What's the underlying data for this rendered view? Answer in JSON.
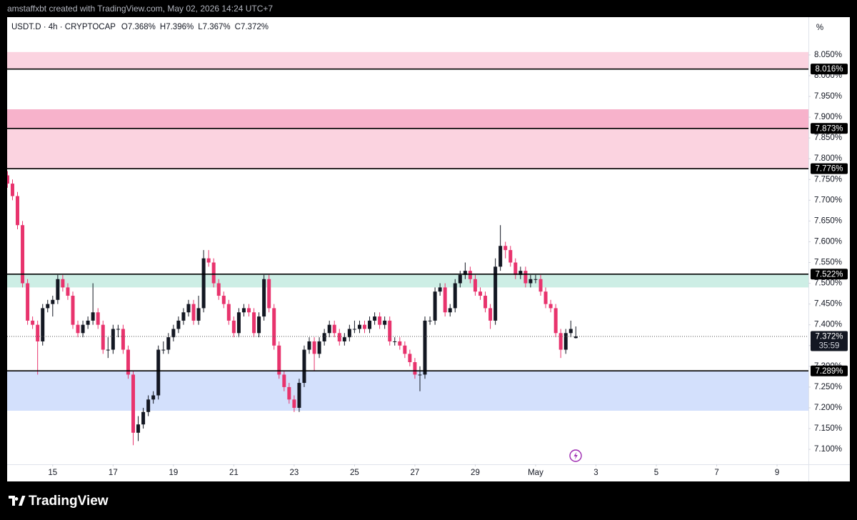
{
  "header": "amstaffxbt created with TradingView.com, May 02, 2026 14:24 UTC+7",
  "footer": {
    "brand": "TradingView"
  },
  "chart_data": {
    "type": "candlestick",
    "legend": {
      "symbol": "USDT.D · 4h · CRYPTOCAP",
      "items": [
        {
          "key": "O",
          "value": "7.368%"
        },
        {
          "key": "H",
          "value": "7.396%"
        },
        {
          "key": "L",
          "value": "7.367%"
        },
        {
          "key": "C",
          "value": "7.372%"
        }
      ]
    },
    "y_unit": "%",
    "up_color": "#131722",
    "down_color": "#e8336d",
    "x": [
      13.5,
      13.667,
      13.833,
      14,
      14.167,
      14.333,
      14.5,
      14.667,
      14.833,
      15,
      15.167,
      15.333,
      15.5,
      15.667,
      15.833,
      16,
      16.167,
      16.333,
      16.5,
      16.667,
      16.833,
      17,
      17.167,
      17.333,
      17.5,
      17.667,
      17.833,
      18,
      18.167,
      18.333,
      18.5,
      18.667,
      18.833,
      19,
      19.167,
      19.333,
      19.5,
      19.667,
      19.833,
      20,
      20.167,
      20.333,
      20.5,
      20.667,
      20.833,
      21,
      21.167,
      21.333,
      21.5,
      21.667,
      21.833,
      22,
      22.167,
      22.333,
      22.5,
      22.667,
      22.833,
      23,
      23.167,
      23.333,
      23.5,
      23.667,
      23.833,
      24,
      24.167,
      24.333,
      24.5,
      24.667,
      24.833,
      25,
      25.167,
      25.333,
      25.5,
      25.667,
      25.833,
      26,
      26.167,
      26.333,
      26.5,
      26.667,
      26.833,
      27,
      27.167,
      27.333,
      27.5,
      27.667,
      27.833,
      28,
      28.167,
      28.333,
      28.5,
      28.667,
      28.833,
      29,
      29.167,
      29.333,
      29.5,
      29.667,
      29.833,
      30,
      30.167,
      30.333,
      30.5,
      30.667,
      30.833,
      31,
      31.167,
      31.333,
      31.5,
      31.667,
      31.833,
      32,
      32.167,
      32.333
    ],
    "open": [
      7.76,
      7.74,
      7.71,
      7.64,
      7.5,
      7.41,
      7.4,
      7.36,
      7.44,
      7.45,
      7.46,
      7.51,
      7.49,
      7.47,
      7.4,
      7.38,
      7.4,
      7.41,
      7.43,
      7.4,
      7.34,
      7.34,
      7.39,
      7.39,
      7.34,
      7.28,
      7.14,
      7.16,
      7.19,
      7.22,
      7.23,
      7.34,
      7.34,
      7.37,
      7.39,
      7.41,
      7.43,
      7.45,
      7.41,
      7.44,
      7.56,
      7.55,
      7.5,
      7.47,
      7.45,
      7.41,
      7.38,
      7.43,
      7.44,
      7.43,
      7.38,
      7.42,
      7.51,
      7.44,
      7.35,
      7.28,
      7.25,
      7.22,
      7.2,
      7.26,
      7.34,
      7.36,
      7.33,
      7.36,
      7.38,
      7.4,
      7.38,
      7.36,
      7.37,
      7.39,
      7.39,
      7.4,
      7.39,
      7.41,
      7.42,
      7.4,
      7.41,
      7.36,
      7.36,
      7.35,
      7.33,
      7.31,
      7.28,
      7.28,
      7.41,
      7.41,
      7.48,
      7.49,
      7.43,
      7.44,
      7.5,
      7.52,
      7.53,
      7.51,
      7.48,
      7.47,
      7.44,
      7.41,
      7.54,
      7.59,
      7.58,
      7.55,
      7.52,
      7.53,
      7.5,
      7.51,
      7.51,
      7.48,
      7.45,
      7.44,
      7.38,
      7.34,
      7.38,
      7.368
    ],
    "high": [
      7.77,
      7.75,
      7.72,
      7.65,
      7.51,
      7.42,
      7.41,
      7.45,
      7.46,
      7.47,
      7.52,
      7.52,
      7.5,
      7.48,
      7.41,
      7.41,
      7.42,
      7.5,
      7.44,
      7.41,
      7.37,
      7.4,
      7.4,
      7.4,
      7.35,
      7.29,
      7.18,
      7.2,
      7.23,
      7.24,
      7.35,
      7.36,
      7.38,
      7.4,
      7.42,
      7.44,
      7.46,
      7.46,
      7.47,
      7.58,
      7.58,
      7.56,
      7.51,
      7.48,
      7.46,
      7.42,
      7.44,
      7.45,
      7.45,
      7.44,
      7.43,
      7.52,
      7.52,
      7.45,
      7.36,
      7.29,
      7.26,
      7.23,
      7.27,
      7.35,
      7.37,
      7.37,
      7.37,
      7.39,
      7.41,
      7.41,
      7.39,
      7.38,
      7.4,
      7.41,
      7.41,
      7.41,
      7.42,
      7.43,
      7.43,
      7.42,
      7.42,
      7.37,
      7.37,
      7.36,
      7.34,
      7.32,
      7.3,
      7.42,
      7.42,
      7.49,
      7.5,
      7.5,
      7.45,
      7.51,
      7.53,
      7.55,
      7.54,
      7.52,
      7.49,
      7.48,
      7.45,
      7.56,
      7.64,
      7.6,
      7.59,
      7.56,
      7.54,
      7.54,
      7.52,
      7.52,
      7.52,
      7.49,
      7.46,
      7.45,
      7.39,
      7.39,
      7.41,
      7.396
    ],
    "low": [
      7.73,
      7.7,
      7.63,
      7.49,
      7.4,
      7.39,
      7.28,
      7.35,
      7.43,
      7.42,
      7.45,
      7.48,
      7.46,
      7.39,
      7.37,
      7.37,
      7.39,
      7.4,
      7.39,
      7.33,
      7.32,
      7.33,
      7.37,
      7.33,
      7.27,
      7.11,
      7.12,
      7.15,
      7.18,
      7.21,
      7.22,
      7.33,
      7.33,
      7.36,
      7.38,
      7.4,
      7.42,
      7.4,
      7.4,
      7.43,
      7.54,
      7.49,
      7.46,
      7.44,
      7.4,
      7.37,
      7.37,
      7.42,
      7.42,
      7.37,
      7.37,
      7.41,
      7.43,
      7.34,
      7.27,
      7.24,
      7.21,
      7.19,
      7.19,
      7.25,
      7.33,
      7.29,
      7.32,
      7.35,
      7.37,
      7.37,
      7.35,
      7.35,
      7.36,
      7.38,
      7.38,
      7.38,
      7.38,
      7.4,
      7.39,
      7.39,
      7.35,
      7.35,
      7.34,
      7.32,
      7.3,
      7.27,
      7.24,
      7.27,
      7.4,
      7.4,
      7.47,
      7.42,
      7.42,
      7.43,
      7.49,
      7.51,
      7.5,
      7.47,
      7.46,
      7.43,
      7.39,
      7.4,
      7.53,
      7.56,
      7.54,
      7.51,
      7.51,
      7.49,
      7.49,
      7.5,
      7.47,
      7.44,
      7.43,
      7.37,
      7.32,
      7.33,
      7.37,
      7.367
    ],
    "close": [
      7.74,
      7.71,
      7.64,
      7.5,
      7.41,
      7.4,
      7.36,
      7.44,
      7.45,
      7.46,
      7.51,
      7.49,
      7.47,
      7.4,
      7.38,
      7.4,
      7.41,
      7.43,
      7.4,
      7.34,
      7.34,
      7.39,
      7.39,
      7.34,
      7.28,
      7.14,
      7.16,
      7.19,
      7.22,
      7.23,
      7.34,
      7.34,
      7.37,
      7.39,
      7.41,
      7.43,
      7.45,
      7.41,
      7.44,
      7.56,
      7.55,
      7.5,
      7.47,
      7.45,
      7.41,
      7.38,
      7.43,
      7.44,
      7.43,
      7.38,
      7.42,
      7.51,
      7.44,
      7.35,
      7.28,
      7.25,
      7.22,
      7.2,
      7.26,
      7.34,
      7.36,
      7.33,
      7.36,
      7.38,
      7.4,
      7.38,
      7.36,
      7.37,
      7.39,
      7.39,
      7.4,
      7.39,
      7.41,
      7.42,
      7.4,
      7.41,
      7.36,
      7.36,
      7.35,
      7.33,
      7.31,
      7.28,
      7.28,
      7.41,
      7.41,
      7.48,
      7.49,
      7.43,
      7.44,
      7.5,
      7.52,
      7.53,
      7.51,
      7.48,
      7.47,
      7.44,
      7.41,
      7.54,
      7.59,
      7.58,
      7.55,
      7.52,
      7.53,
      7.5,
      7.51,
      7.51,
      7.48,
      7.45,
      7.44,
      7.38,
      7.34,
      7.38,
      7.39,
      7.372
    ],
    "xlim": [
      13.49,
      40.04
    ],
    "xticks": [
      15,
      17,
      19,
      21,
      23,
      25,
      27,
      29,
      {
        "value": 31,
        "label": "May"
      },
      {
        "value": 33,
        "label": "3"
      },
      {
        "value": 35,
        "label": "5"
      },
      {
        "value": 37,
        "label": "7"
      },
      {
        "value": 39,
        "label": "9"
      }
    ],
    "ylim": [
      7.064,
      8.141
    ],
    "yticks": [
      {
        "value": 7.1,
        "label": "7.100%"
      },
      {
        "value": 7.15,
        "label": "7.150%"
      },
      {
        "value": 7.2,
        "label": "7.200%"
      },
      {
        "value": 7.25,
        "label": "7.250%"
      },
      {
        "value": 7.3,
        "label": "7.300%"
      },
      {
        "value": 7.35,
        "label": "7.350%"
      },
      {
        "value": 7.4,
        "label": "7.400%"
      },
      {
        "value": 7.45,
        "label": "7.450%"
      },
      {
        "value": 7.5,
        "label": "7.500%"
      },
      {
        "value": 7.55,
        "label": "7.550%"
      },
      {
        "value": 7.6,
        "label": "7.600%"
      },
      {
        "value": 7.65,
        "label": "7.650%"
      },
      {
        "value": 7.7,
        "label": "7.700%"
      },
      {
        "value": 7.75,
        "label": "7.750%"
      },
      {
        "value": 7.8,
        "label": "7.800%"
      },
      {
        "value": 7.85,
        "label": "7.850%"
      },
      {
        "value": 7.9,
        "label": "7.900%"
      },
      {
        "value": 7.95,
        "label": "7.950%"
      },
      {
        "value": 8.0,
        "label": "8.000%"
      },
      {
        "value": 8.05,
        "label": "8.050%"
      }
    ],
    "zones": [
      {
        "from": 8.016,
        "to": 8.057,
        "color": "#fbd3e0"
      },
      {
        "from": 7.873,
        "to": 7.919,
        "color": "#f7b2cb"
      },
      {
        "from": 7.776,
        "to": 7.873,
        "color": "#fbd3e0"
      },
      {
        "from": 7.49,
        "to": 7.522,
        "color": "#cdeee5"
      },
      {
        "from": 7.193,
        "to": 7.289,
        "color": "#d3e0fc"
      }
    ],
    "levels": [
      {
        "value": 8.016,
        "label": "8.016%"
      },
      {
        "value": 7.873,
        "label": "7.873%"
      },
      {
        "value": 7.776,
        "label": "7.776%"
      },
      {
        "value": 7.522,
        "label": "7.522%"
      },
      {
        "value": 7.289,
        "label": "7.289%"
      }
    ],
    "last_price": {
      "value": 7.372,
      "label": "7.372%",
      "countdown": "35:59"
    }
  }
}
